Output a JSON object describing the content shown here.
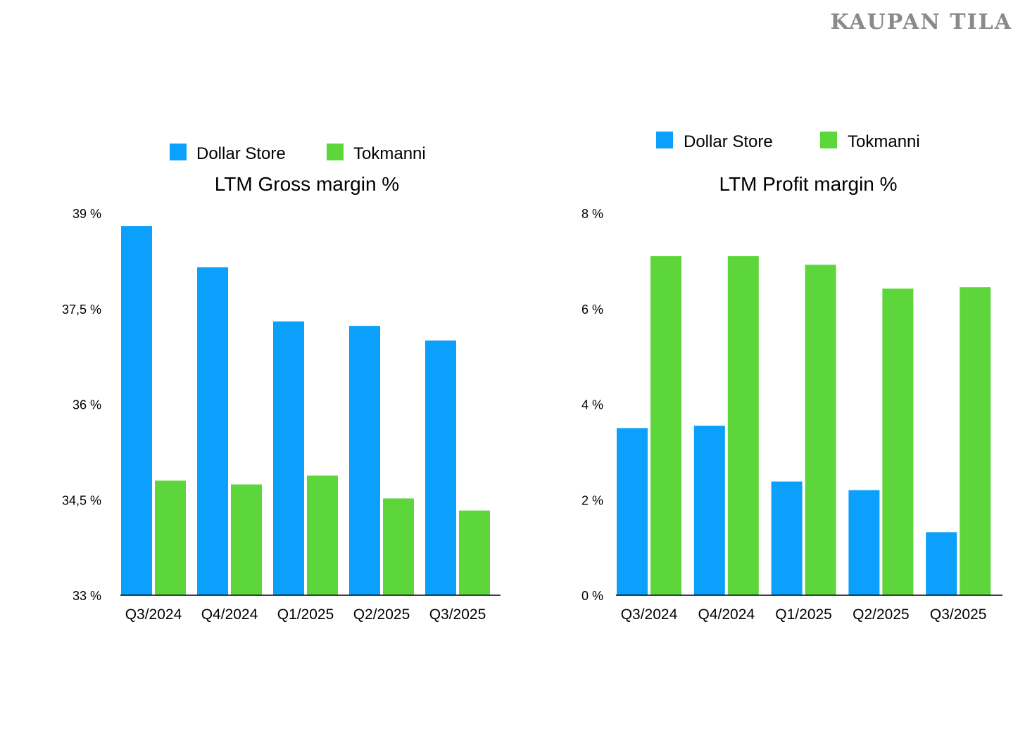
{
  "brand": "KAUPAN TILA",
  "colors": {
    "dollar_store": "#0aa0fb",
    "tokmanni": "#5dd63c",
    "axis": "#000000"
  },
  "chart_data": [
    {
      "type": "bar",
      "title": "LTM Gross margin %",
      "categories": [
        "Q3/2024",
        "Q4/2024",
        "Q1/2025",
        "Q2/2025",
        "Q3/2025"
      ],
      "series": [
        {
          "name": "Dollar Store",
          "values": [
            38.8,
            38.15,
            37.3,
            37.23,
            37.0
          ]
        },
        {
          "name": "Tokmanni",
          "values": [
            34.8,
            34.74,
            34.88,
            34.52,
            34.33
          ]
        }
      ],
      "ylim": [
        33,
        39
      ],
      "yticks": [
        33,
        34.5,
        36,
        37.5,
        39
      ],
      "ytick_labels": [
        "33 %",
        "34,5 %",
        "36 %",
        "37,5 %",
        "39 %"
      ],
      "legend": "top-center",
      "xlabel": "",
      "ylabel": ""
    },
    {
      "type": "bar",
      "title": "LTM Profit margin %",
      "categories": [
        "Q3/2024",
        "Q4/2024",
        "Q1/2025",
        "Q2/2025",
        "Q3/2025"
      ],
      "series": [
        {
          "name": "Dollar Store",
          "values": [
            3.5,
            3.55,
            2.38,
            2.2,
            1.32
          ]
        },
        {
          "name": "Tokmanni",
          "values": [
            7.1,
            7.1,
            6.92,
            6.42,
            6.45
          ]
        }
      ],
      "ylim": [
        0,
        8
      ],
      "yticks": [
        0,
        2,
        4,
        6,
        8
      ],
      "ytick_labels": [
        "0 %",
        "2 %",
        "4 %",
        "6 %",
        "8 %"
      ],
      "legend": "top-center",
      "xlabel": "",
      "ylabel": ""
    }
  ]
}
